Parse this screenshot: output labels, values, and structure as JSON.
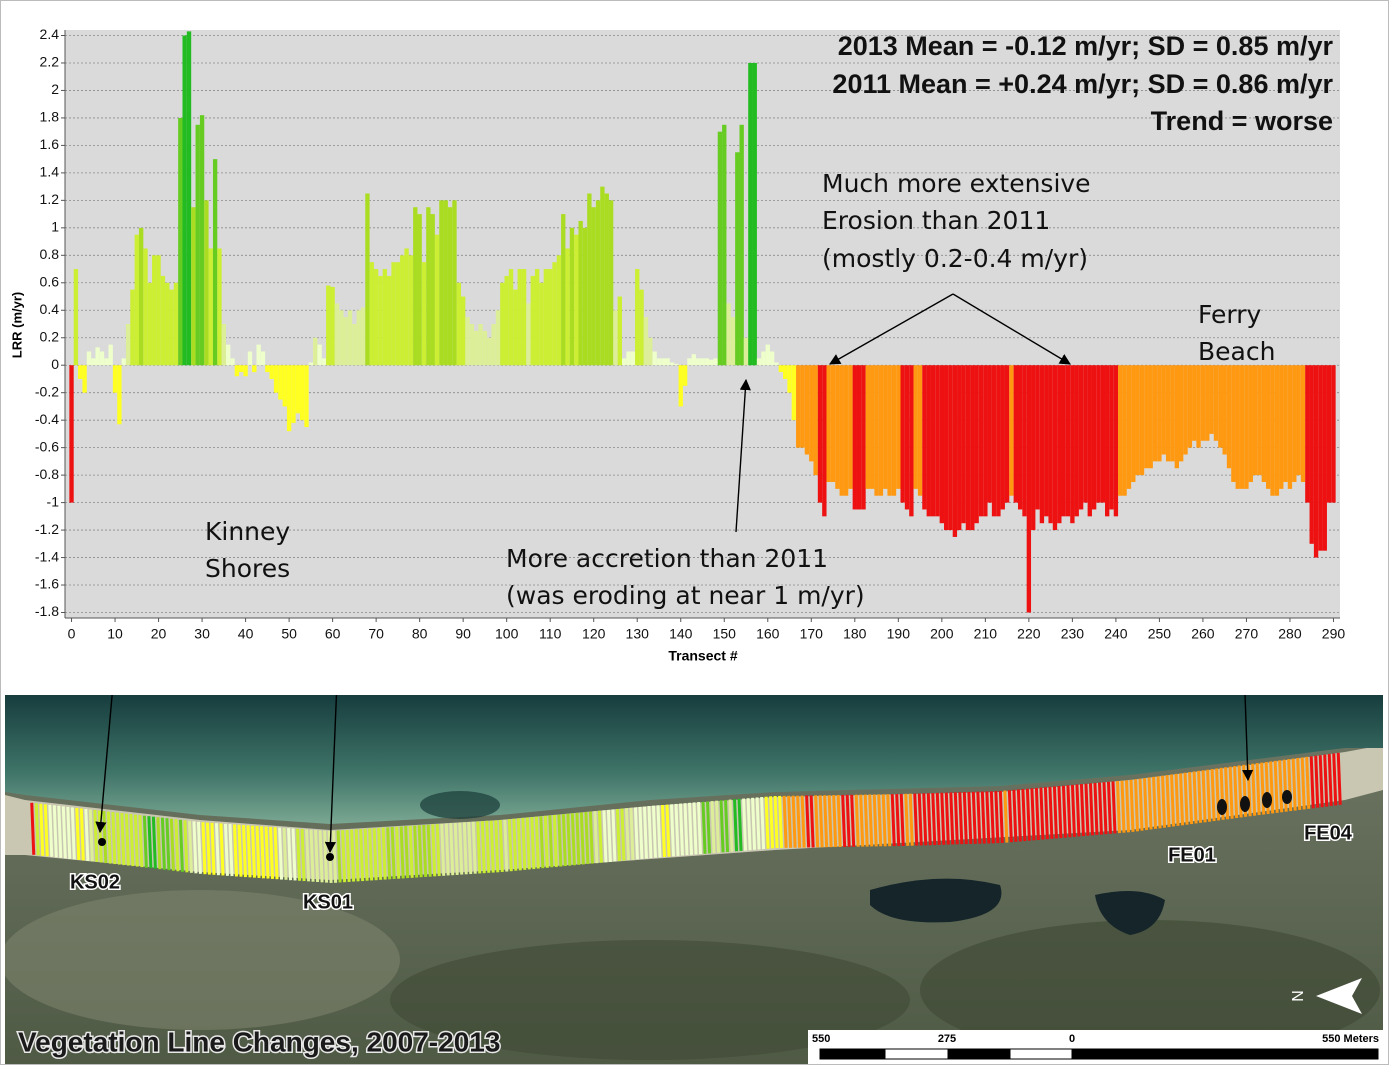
{
  "chart_data": {
    "type": "bar",
    "y_label": "LRR (m/yr)",
    "x_label": "Transect #",
    "x": [
      0,
      1,
      2,
      3,
      4,
      5,
      6,
      7,
      8,
      9,
      10,
      11,
      12,
      13,
      14,
      15,
      16,
      17,
      18,
      19,
      20,
      21,
      22,
      23,
      24,
      25,
      26,
      27,
      28,
      29,
      30,
      31,
      32,
      33,
      34,
      35,
      36,
      37,
      38,
      39,
      40,
      41,
      42,
      43,
      44,
      45,
      46,
      47,
      48,
      49,
      50,
      51,
      52,
      53,
      54,
      55,
      56,
      57,
      58,
      59,
      60,
      61,
      62,
      63,
      64,
      65,
      66,
      67,
      68,
      69,
      70,
      71,
      72,
      73,
      74,
      75,
      76,
      77,
      78,
      79,
      80,
      81,
      82,
      83,
      84,
      85,
      86,
      87,
      88,
      89,
      90,
      91,
      92,
      93,
      94,
      95,
      96,
      97,
      98,
      99,
      100,
      101,
      102,
      103,
      104,
      105,
      106,
      107,
      108,
      109,
      110,
      111,
      112,
      113,
      114,
      115,
      116,
      117,
      118,
      119,
      120,
      121,
      122,
      123,
      124,
      125,
      126,
      127,
      128,
      129,
      130,
      131,
      132,
      133,
      134,
      135,
      136,
      137,
      138,
      139,
      140,
      141,
      142,
      143,
      144,
      145,
      146,
      147,
      148,
      149,
      150,
      151,
      152,
      153,
      154,
      155,
      156,
      157,
      158,
      159,
      160,
      161,
      162,
      163,
      164,
      165,
      166,
      167,
      168,
      169,
      170,
      171,
      172,
      173,
      174,
      175,
      176,
      177,
      178,
      179,
      180,
      181,
      182,
      183,
      184,
      185,
      186,
      187,
      188,
      189,
      190,
      191,
      192,
      193,
      194,
      195,
      196,
      197,
      198,
      199,
      200,
      201,
      202,
      203,
      204,
      205,
      206,
      207,
      208,
      209,
      210,
      211,
      212,
      213,
      214,
      215,
      216,
      217,
      218,
      219,
      220,
      221,
      222,
      223,
      224,
      225,
      226,
      227,
      228,
      229,
      230,
      231,
      232,
      233,
      234,
      235,
      236,
      237,
      238,
      239,
      240,
      241,
      242,
      243,
      244,
      245,
      246,
      247,
      248,
      249,
      250,
      251,
      252,
      253,
      254,
      255,
      256,
      257,
      258,
      259,
      260,
      261,
      262,
      263,
      264,
      265,
      266,
      267,
      268,
      269,
      270,
      271,
      272,
      273,
      274,
      275,
      276,
      277,
      278,
      279,
      280,
      281,
      282,
      283,
      284,
      285,
      286,
      287,
      288,
      289,
      290
    ],
    "values": [
      -1.0,
      0.7,
      -0.1,
      -0.2,
      0.1,
      0.05,
      0.13,
      0.1,
      0.05,
      0.15,
      -0.2,
      -0.43,
      0.05,
      0.3,
      0.55,
      0.95,
      1.0,
      0.85,
      0.6,
      0.8,
      0.8,
      0.65,
      0.6,
      0.55,
      0.6,
      1.8,
      2.4,
      2.43,
      1.15,
      1.75,
      1.82,
      1.2,
      0.85,
      1.5,
      0.85,
      0.3,
      0.15,
      0.05,
      -0.08,
      -0.05,
      -0.08,
      0.1,
      -0.05,
      0.15,
      0.1,
      -0.05,
      -0.1,
      -0.2,
      -0.25,
      -0.3,
      -0.48,
      -0.42,
      -0.35,
      -0.4,
      -0.45,
      0.02,
      0.2,
      0.15,
      0.05,
      0.58,
      0.57,
      0.45,
      0.4,
      0.35,
      0.4,
      0.3,
      0.4,
      0.42,
      1.25,
      0.75,
      0.7,
      0.65,
      0.7,
      0.65,
      0.75,
      0.75,
      0.8,
      0.85,
      0.8,
      1.15,
      1.1,
      0.75,
      1.15,
      1.1,
      0.95,
      1.2,
      1.2,
      1.15,
      1.2,
      0.6,
      0.5,
      0.35,
      0.3,
      0.25,
      0.3,
      0.25,
      0.2,
      0.3,
      0.4,
      0.6,
      0.65,
      0.7,
      0.55,
      0.7,
      0.7,
      0.45,
      0.65,
      0.7,
      0.6,
      0.7,
      0.7,
      0.75,
      0.8,
      1.1,
      0.85,
      1.0,
      0.95,
      1.05,
      1.0,
      1.25,
      1.15,
      1.2,
      1.3,
      1.25,
      1.2,
      0.4,
      0.5,
      0.05,
      0.1,
      0.1,
      0.7,
      0.55,
      0.35,
      0.2,
      0.1,
      0.05,
      0.05,
      0.05,
      0.02,
      0.01,
      -0.3,
      -0.15,
      0.05,
      0.08,
      0.05,
      0.05,
      0.05,
      0.04,
      0.05,
      1.7,
      1.75,
      0.45,
      0.35,
      1.55,
      1.75,
      0.2,
      2.2,
      2.2,
      0.05,
      0.1,
      0.15,
      0.1,
      0.02,
      -0.05,
      -0.1,
      -0.2,
      -0.4,
      -0.6,
      -0.6,
      -0.65,
      -0.7,
      -0.8,
      -1.0,
      -1.1,
      -0.85,
      -0.85,
      -0.9,
      -0.95,
      -0.95,
      -0.9,
      -1.05,
      -1.05,
      -1.05,
      -0.9,
      -0.9,
      -0.95,
      -0.95,
      -0.9,
      -0.95,
      -0.95,
      -0.9,
      -1.0,
      -1.05,
      -1.1,
      -0.9,
      -0.95,
      -1.05,
      -1.1,
      -1.1,
      -1.1,
      -1.15,
      -1.2,
      -1.2,
      -1.25,
      -1.2,
      -1.15,
      -1.2,
      -1.2,
      -1.15,
      -1.1,
      -1.1,
      -1.0,
      -1.1,
      -1.1,
      -1.05,
      -1.0,
      -0.95,
      -1.0,
      -1.05,
      -1.1,
      -1.8,
      -1.2,
      -1.05,
      -1.15,
      -1.1,
      -1.15,
      -1.2,
      -1.15,
      -1.1,
      -1.1,
      -1.15,
      -1.1,
      -1.05,
      -1.0,
      -1.1,
      -1.05,
      -1.0,
      -1.0,
      -1.1,
      -1.05,
      -1.1,
      -0.95,
      -0.95,
      -0.9,
      -0.85,
      -0.8,
      -0.8,
      -0.75,
      -0.75,
      -0.7,
      -0.7,
      -0.65,
      -0.7,
      -0.7,
      -0.75,
      -0.7,
      -0.65,
      -0.6,
      -0.55,
      -0.6,
      -0.55,
      -0.55,
      -0.5,
      -0.55,
      -0.6,
      -0.65,
      -0.75,
      -0.85,
      -0.9,
      -0.9,
      -0.9,
      -0.85,
      -0.8,
      -0.8,
      -0.85,
      -0.9,
      -0.95,
      -0.95,
      -0.9,
      -0.85,
      -0.9,
      -0.85,
      -0.8,
      -0.85,
      -1.0,
      -1.3,
      -1.4,
      -1.35,
      -1.35,
      -1.0,
      -1.0
    ],
    "colors": [
      "#e11",
      "#ce3",
      "#ff2",
      "#ff2",
      "#efc",
      "#efc",
      "#efc",
      "#efc",
      "#efc",
      "#efc",
      "#ff2",
      "#ff2",
      "#efc",
      "#de9",
      "#ce3",
      "#ce3",
      "#ad2",
      "#ce3",
      "#ce3",
      "#ce3",
      "#ce3",
      "#ce3",
      "#ce3",
      "#ce3",
      "#ce3",
      "#6c2",
      "#2b2",
      "#2b2",
      "#ad2",
      "#6c2",
      "#6c2",
      "#ad2",
      "#ce3",
      "#6c2",
      "#ce3",
      "#de9",
      "#efc",
      "#efc",
      "#ff2",
      "#ff2",
      "#ff2",
      "#efc",
      "#ff2",
      "#efc",
      "#efc",
      "#ff2",
      "#ff2",
      "#ff2",
      "#ff2",
      "#ff2",
      "#ff2",
      "#ff2",
      "#ff2",
      "#ff2",
      "#ff2",
      "#efc",
      "#de9",
      "#efc",
      "#efc",
      "#ce3",
      "#ce3",
      "#de9",
      "#de9",
      "#de9",
      "#de9",
      "#de9",
      "#de9",
      "#de9",
      "#ad2",
      "#ce3",
      "#ce3",
      "#ce3",
      "#ce3",
      "#ce3",
      "#ce3",
      "#ce3",
      "#ce3",
      "#ce3",
      "#ce3",
      "#ad2",
      "#ad2",
      "#ce3",
      "#ad2",
      "#ad2",
      "#ce3",
      "#ad2",
      "#ad2",
      "#ad2",
      "#ad2",
      "#ce3",
      "#ce3",
      "#de9",
      "#de9",
      "#de9",
      "#de9",
      "#de9",
      "#de9",
      "#de9",
      "#de9",
      "#ce3",
      "#ce3",
      "#ce3",
      "#ce3",
      "#ce3",
      "#ce3",
      "#de9",
      "#ce3",
      "#ce3",
      "#ce3",
      "#ce3",
      "#ce3",
      "#ce3",
      "#ce3",
      "#ad2",
      "#ce3",
      "#ad2",
      "#ce3",
      "#ad2",
      "#ad2",
      "#ad2",
      "#ad2",
      "#ad2",
      "#ad2",
      "#ad2",
      "#ad2",
      "#de9",
      "#ce3",
      "#efc",
      "#efc",
      "#efc",
      "#ce3",
      "#ce3",
      "#de9",
      "#de9",
      "#efc",
      "#efc",
      "#efc",
      "#efc",
      "#efc",
      "#efc",
      "#ff2",
      "#ff2",
      "#efc",
      "#efc",
      "#efc",
      "#efc",
      "#efc",
      "#efc",
      "#efc",
      "#6c2",
      "#6c2",
      "#de9",
      "#de9",
      "#6c2",
      "#6c2",
      "#de9",
      "#2b2",
      "#2b2",
      "#efc",
      "#efc",
      "#efc",
      "#efc",
      "#efc",
      "#ff2",
      "#ff2",
      "#ff2",
      "#ff2",
      "#f91",
      "#f91",
      "#f91",
      "#f91",
      "#f91",
      "#e11",
      "#e11",
      "#f91",
      "#f91",
      "#f91",
      "#f91",
      "#f91",
      "#f91",
      "#e11",
      "#e11",
      "#e11",
      "#f91",
      "#f91",
      "#f91",
      "#f91",
      "#f91",
      "#f91",
      "#f91",
      "#f91",
      "#e11",
      "#e11",
      "#e11",
      "#f91",
      "#f91",
      "#e11",
      "#e11",
      "#e11",
      "#e11",
      "#e11",
      "#e11",
      "#e11",
      "#e11",
      "#e11",
      "#e11",
      "#e11",
      "#e11",
      "#e11",
      "#e11",
      "#e11",
      "#e11",
      "#e11",
      "#e11",
      "#e11",
      "#e11",
      "#f91",
      "#e11",
      "#e11",
      "#e11",
      "#e11",
      "#e11",
      "#e11",
      "#e11",
      "#e11",
      "#e11",
      "#e11",
      "#e11",
      "#e11",
      "#e11",
      "#e11",
      "#e11",
      "#e11",
      "#e11",
      "#e11",
      "#e11",
      "#e11",
      "#e11",
      "#e11",
      "#e11",
      "#e11",
      "#f91",
      "#f91",
      "#f91",
      "#f91",
      "#f91",
      "#f91",
      "#f91",
      "#f91",
      "#f91",
      "#f91",
      "#f91",
      "#f91",
      "#f91",
      "#f91",
      "#f91",
      "#f91",
      "#f91",
      "#f91",
      "#f91",
      "#f91",
      "#f91",
      "#f91",
      "#f91",
      "#f91",
      "#f91",
      "#f91",
      "#f91",
      "#f91",
      "#f91",
      "#f91",
      "#f91",
      "#f91",
      "#f91",
      "#f91",
      "#f91",
      "#f91",
      "#f91",
      "#f91",
      "#f91",
      "#f91",
      "#f91",
      "#f91",
      "#f91",
      "#e11",
      "#e11",
      "#e11",
      "#e11",
      "#e11",
      "#e11",
      "#e11"
    ],
    "xlim": [
      -1.5,
      291.5
    ],
    "ylim": [
      -1.84,
      2.44
    ],
    "xticks": [
      0,
      10,
      20,
      30,
      40,
      50,
      60,
      70,
      80,
      90,
      100,
      110,
      120,
      130,
      140,
      150,
      160,
      170,
      180,
      190,
      200,
      210,
      220,
      230,
      240,
      250,
      260,
      270,
      280,
      290
    ],
    "yticks": [
      2.4,
      2.2,
      2,
      1.8,
      1.6,
      1.4,
      1.2,
      1,
      0.8,
      0.6,
      0.4,
      0.2,
      0,
      -0.2,
      -0.4,
      -0.6,
      -0.8,
      -1,
      -1.2,
      -1.4,
      -1.6,
      -1.8
    ],
    "grid": true,
    "annotations": {
      "stats": [
        "2013 Mean = -0.12 m/yr; SD = 0.85 m/yr",
        "2011 Mean = +0.24 m/yr; SD = 0.86 m/yr",
        "Trend = worse"
      ],
      "erosion": [
        "Much more extensive",
        "Erosion than 2011",
        "(mostly 0.2-0.4 m/yr)"
      ],
      "ferry_beach": [
        "Ferry",
        "Beach"
      ],
      "kinney_shores": [
        "Kinney",
        "Shores"
      ],
      "accretion": [
        "More accretion than 2011",
        "(was eroding at  near 1 m/yr)"
      ]
    }
  },
  "map": {
    "title": "Vegetation Line Changes, 2007-2013",
    "labels": [
      "KS02",
      "KS01",
      "FE01",
      "FE04"
    ],
    "scale": [
      "550",
      "275",
      "0",
      "550 Meters"
    ],
    "north": "N"
  }
}
